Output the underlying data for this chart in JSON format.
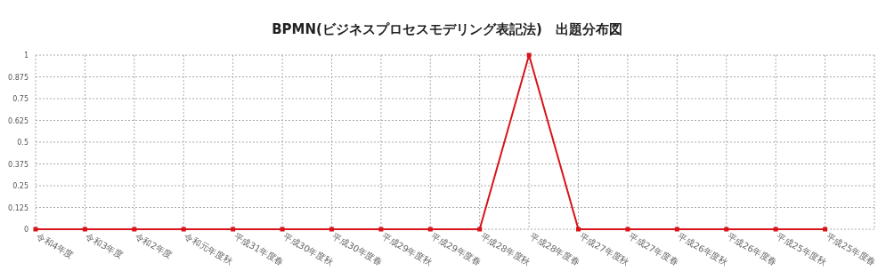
{
  "chart_data": {
    "type": "line",
    "title": "BPMN(ビジネスプロセスモデリング表記法)　出題分布図",
    "categories": [
      "令和4年度",
      "令和3年度",
      "令和2年度",
      "令和元年度秋",
      "平成31年度春",
      "平成30年度秋",
      "平成30年度春",
      "平成29年度秋",
      "平成29年度春",
      "平成28年度秋",
      "平成28年度春",
      "平成27年度秋",
      "平成27年度春",
      "平成26年度秋",
      "平成26年度春",
      "平成25年度秋",
      "平成25年度春"
    ],
    "series": [
      {
        "color": "#d7141a",
        "values": [
          0,
          0,
          0,
          0,
          0,
          0,
          0,
          0,
          0,
          0,
          1,
          0,
          0,
          0,
          0,
          0,
          0
        ]
      }
    ],
    "ylim": [
      0,
      1
    ],
    "yticks": [
      0,
      0.125,
      0.25,
      0.375,
      0.5,
      0.625,
      0.75,
      0.875,
      1
    ],
    "grid": true,
    "marker": "square",
    "line_style": "solid"
  }
}
